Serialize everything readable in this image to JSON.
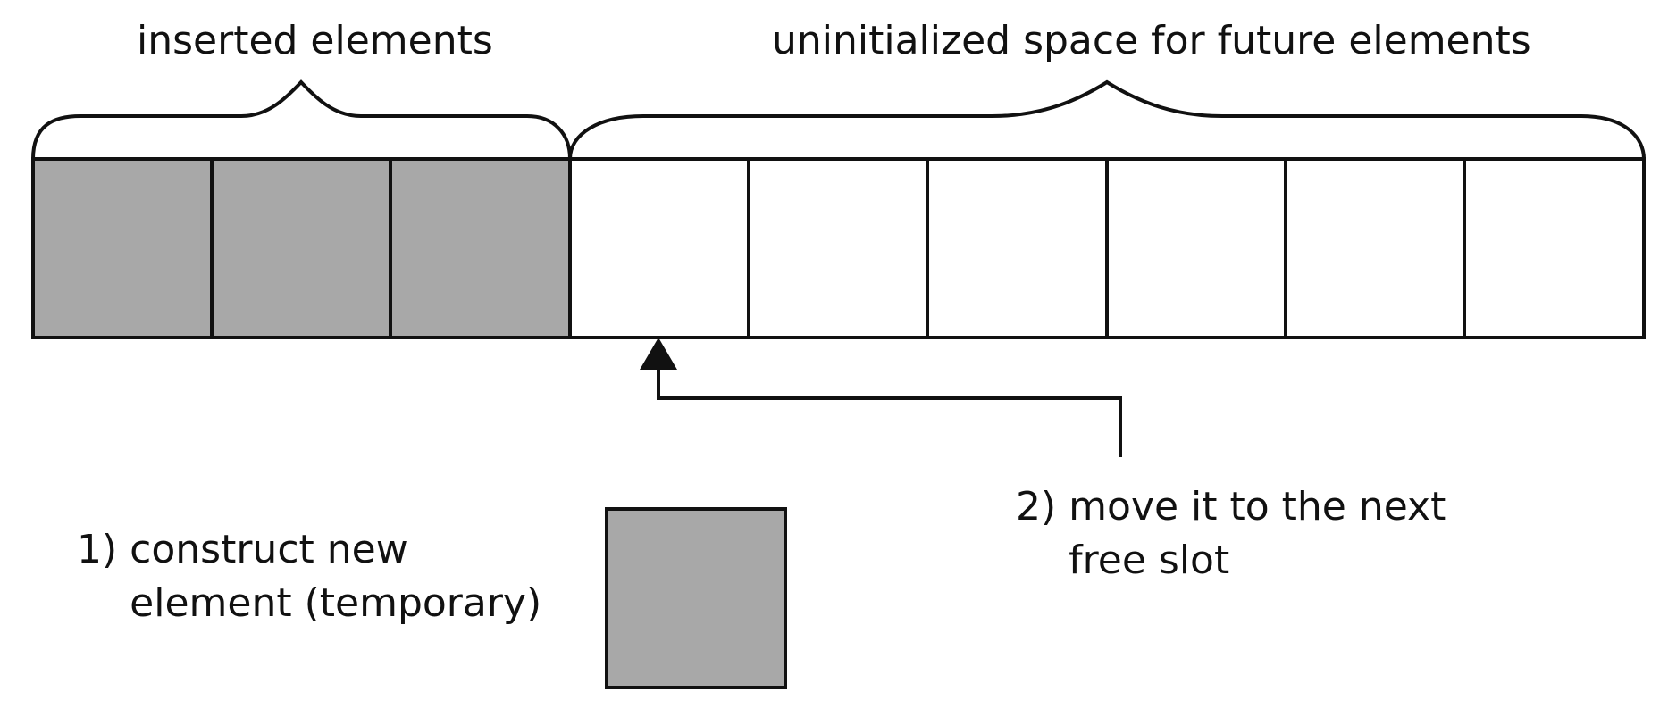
{
  "title_inserted": "inserted elements",
  "title_uninitialized": "uninitialized space for future elements",
  "step1": {
    "number": "1)",
    "line1": "construct new",
    "line2": "element (temporary)"
  },
  "step2": {
    "number": "2)",
    "line1": "move it to the next",
    "line2": "free slot"
  },
  "colors": {
    "filled": "#a8a8a8",
    "empty": "#ffffff",
    "stroke": "#111111"
  },
  "slots": {
    "filled": 3,
    "empty": 6
  }
}
